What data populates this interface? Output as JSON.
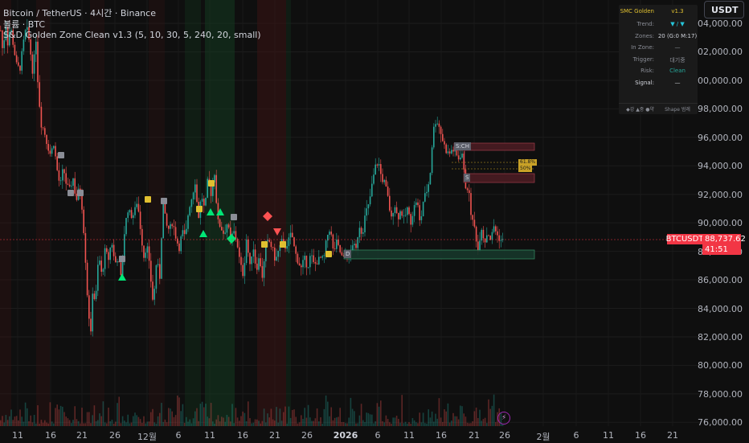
{
  "header": {
    "line1": "Bitcoin / TetherUS · 4시간 · Binance",
    "line2": "볼륨 · BTC",
    "line3": "S&D Golden Zone Clean v1.3 (5, 10, 30, 5, 240, 20, small)"
  },
  "currency_button": "USDT",
  "symbol_tag": "BTCUSDT",
  "current_price": "88,737.62",
  "countdown": "41:51",
  "y_axis_labels": [
    "104,000.00",
    "102,000.00",
    "100,000.00",
    "98,000.00",
    "96,000.00",
    "94,000.00",
    "92,000.00",
    "90,000.00",
    "88,000.00",
    "86,000.00",
    "84,000.00",
    "82,000.00",
    "80,000.00",
    "78,000.00",
    "76,000.00"
  ],
  "x_axis_labels": [
    "11",
    "16",
    "21",
    "26",
    "12월",
    "6",
    "11",
    "16",
    "21",
    "26",
    "2026",
    "6",
    "11",
    "16",
    "21",
    "26",
    "2월",
    "6",
    "11",
    "16",
    "21"
  ],
  "info_panel": {
    "title": "SMC Golden",
    "version": "v1.3",
    "rows": [
      {
        "key": "Trend:",
        "value": "▼ / ▼",
        "color": "#26c6da"
      },
      {
        "key": "Zones:",
        "value": "20 (G:0 M:17)",
        "color": "#d1d4dc"
      },
      {
        "key": "In Zone:",
        "value": "—",
        "color": "#8a8d96"
      },
      {
        "key": "Trigger:",
        "value": "대기중",
        "color": "#8a8d96"
      },
      {
        "key": "Risk:",
        "value": "Clean",
        "color": "#26a69a"
      },
      {
        "key": "Signal:",
        "value": "—",
        "color": "#d1d4dc"
      }
    ],
    "legend": "◆강 ▲중 ●약",
    "legend_right": "Shape 범례"
  },
  "zone_labels": {
    "supply": "S:CH",
    "supply2": "S",
    "demand": "D"
  },
  "fib_labels": {
    "fib1": "61.8%",
    "fib2": "50%"
  },
  "colors": {
    "up": "#26a69a",
    "down": "#ef5350",
    "signal_buy": "#00e676",
    "signal_sell": "#ff5252",
    "marker": "#e0c030"
  },
  "chart_data": {
    "type": "candlestick",
    "ylim": [
      75500,
      105500
    ],
    "close_path": [
      [
        0,
        103500
      ],
      [
        3,
        101800
      ],
      [
        6,
        104200
      ],
      [
        9,
        102500
      ],
      [
        12,
        103900
      ],
      [
        16,
        102400
      ],
      [
        20,
        101000
      ],
      [
        24,
        100800
      ],
      [
        28,
        102500
      ],
      [
        32,
        103800
      ],
      [
        36,
        102600
      ],
      [
        40,
        100500
      ],
      [
        44,
        102900
      ],
      [
        46,
        100200
      ],
      [
        50,
        97000
      ],
      [
        54,
        96500
      ],
      [
        58,
        95500
      ],
      [
        62,
        94800
      ],
      [
        66,
        95600
      ],
      [
        70,
        93800
      ],
      [
        74,
        92500
      ],
      [
        78,
        93900
      ],
      [
        82,
        92600
      ],
      [
        86,
        92300
      ],
      [
        90,
        93200
      ],
      [
        94,
        91500
      ],
      [
        98,
        92500
      ],
      [
        102,
        90800
      ],
      [
        106,
        87000
      ],
      [
        108,
        84800
      ],
      [
        110,
        83400
      ],
      [
        112,
        81800
      ],
      [
        114,
        85300
      ],
      [
        118,
        84400
      ],
      [
        122,
        87800
      ],
      [
        126,
        86200
      ],
      [
        130,
        88100
      ],
      [
        134,
        87400
      ],
      [
        138,
        88800
      ],
      [
        142,
        87100
      ],
      [
        146,
        87600
      ],
      [
        150,
        86000
      ],
      [
        154,
        89300
      ],
      [
        158,
        91000
      ],
      [
        162,
        90500
      ],
      [
        166,
        90600
      ],
      [
        170,
        91600
      ],
      [
        174,
        89600
      ],
      [
        178,
        87600
      ],
      [
        182,
        88500
      ],
      [
        186,
        86500
      ],
      [
        190,
        84200
      ],
      [
        194,
        87400
      ],
      [
        198,
        86200
      ],
      [
        202,
        91500
      ],
      [
        206,
        89800
      ],
      [
        210,
        89500
      ],
      [
        214,
        90100
      ],
      [
        218,
        89000
      ],
      [
        222,
        88200
      ],
      [
        226,
        89400
      ],
      [
        230,
        88900
      ],
      [
        234,
        91000
      ],
      [
        238,
        91800
      ],
      [
        242,
        92900
      ],
      [
        246,
        90300
      ],
      [
        250,
        92000
      ],
      [
        254,
        90800
      ],
      [
        258,
        93200
      ],
      [
        262,
        92000
      ],
      [
        266,
        93700
      ],
      [
        270,
        90100
      ],
      [
        274,
        89700
      ],
      [
        278,
        89200
      ],
      [
        282,
        90000
      ],
      [
        286,
        88800
      ],
      [
        290,
        89400
      ],
      [
        294,
        88700
      ],
      [
        298,
        87100
      ],
      [
        302,
        86300
      ],
      [
        306,
        89000
      ],
      [
        310,
        86800
      ],
      [
        314,
        88500
      ],
      [
        318,
        86700
      ],
      [
        322,
        87600
      ],
      [
        326,
        86100
      ],
      [
        330,
        88500
      ],
      [
        334,
        88700
      ],
      [
        338,
        88200
      ],
      [
        342,
        87300
      ],
      [
        346,
        88100
      ],
      [
        350,
        88700
      ],
      [
        354,
        88300
      ],
      [
        358,
        88700
      ],
      [
        362,
        89300
      ],
      [
        366,
        88000
      ],
      [
        370,
        87300
      ],
      [
        374,
        86800
      ],
      [
        378,
        87500
      ],
      [
        382,
        86900
      ],
      [
        386,
        87800
      ],
      [
        390,
        87000
      ],
      [
        394,
        87300
      ],
      [
        398,
        87500
      ],
      [
        402,
        87400
      ],
      [
        406,
        89000
      ],
      [
        410,
        89700
      ],
      [
        414,
        87900
      ],
      [
        418,
        88600
      ],
      [
        422,
        88000
      ],
      [
        426,
        87400
      ],
      [
        430,
        87700
      ],
      [
        434,
        87500
      ],
      [
        438,
        88600
      ],
      [
        442,
        88000
      ],
      [
        446,
        89900
      ],
      [
        450,
        89200
      ],
      [
        454,
        90700
      ],
      [
        458,
        91200
      ],
      [
        462,
        92600
      ],
      [
        466,
        93900
      ],
      [
        470,
        94300
      ],
      [
        474,
        93100
      ],
      [
        478,
        92800
      ],
      [
        482,
        91700
      ],
      [
        486,
        90200
      ],
      [
        490,
        91400
      ],
      [
        494,
        90300
      ],
      [
        498,
        90900
      ],
      [
        502,
        90200
      ],
      [
        506,
        91000
      ],
      [
        510,
        90000
      ],
      [
        514,
        91000
      ],
      [
        518,
        91700
      ],
      [
        522,
        89800
      ],
      [
        526,
        91600
      ],
      [
        530,
        92200
      ],
      [
        534,
        93100
      ],
      [
        538,
        96400
      ],
      [
        542,
        97300
      ],
      [
        546,
        96700
      ],
      [
        550,
        95800
      ],
      [
        554,
        95100
      ],
      [
        558,
        94800
      ],
      [
        562,
        95200
      ],
      [
        566,
        94800
      ],
      [
        570,
        94500
      ],
      [
        574,
        95000
      ],
      [
        578,
        92600
      ],
      [
        582,
        92400
      ],
      [
        586,
        90300
      ],
      [
        590,
        89600
      ],
      [
        594,
        88000
      ],
      [
        598,
        89800
      ],
      [
        602,
        88600
      ],
      [
        606,
        89400
      ],
      [
        610,
        88800
      ],
      [
        614,
        89800
      ],
      [
        618,
        89100
      ],
      [
        622,
        88800
      ],
      [
        626,
        88700
      ]
    ],
    "supply_zones": [
      {
        "label": "S:CH",
        "top": 95600,
        "bottom": 95100
      },
      {
        "label": "S",
        "top": 93100,
        "bottom": 92400
      }
    ],
    "demand_zones": [
      {
        "label": "D",
        "top": 87600,
        "bottom": 86900
      }
    ],
    "current_price": 88737.62
  }
}
